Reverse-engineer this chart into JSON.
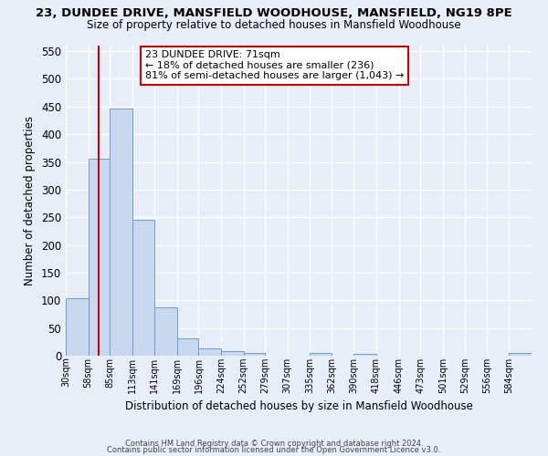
{
  "title": "23, DUNDEE DRIVE, MANSFIELD WOODHOUSE, MANSFIELD, NG19 8PE",
  "subtitle": "Size of property relative to detached houses in Mansfield Woodhouse",
  "xlabel": "Distribution of detached houses by size in Mansfield Woodhouse",
  "ylabel": "Number of detached properties",
  "bin_labels": [
    "30sqm",
    "58sqm",
    "85sqm",
    "113sqm",
    "141sqm",
    "169sqm",
    "196sqm",
    "224sqm",
    "252sqm",
    "279sqm",
    "307sqm",
    "335sqm",
    "362sqm",
    "390sqm",
    "418sqm",
    "446sqm",
    "473sqm",
    "501sqm",
    "529sqm",
    "556sqm",
    "584sqm"
  ],
  "bin_edges": [
    30,
    58,
    85,
    113,
    141,
    169,
    196,
    224,
    252,
    279,
    307,
    335,
    362,
    390,
    418,
    446,
    473,
    501,
    529,
    556,
    584
  ],
  "bar_heights": [
    103,
    355,
    447,
    246,
    88,
    31,
    14,
    8,
    5,
    0,
    0,
    5,
    0,
    3,
    0,
    0,
    0,
    0,
    0,
    0,
    5
  ],
  "bar_color": "#c8d8ee",
  "bar_edge_color": "#6a9fd0",
  "vline_x": 71,
  "vline_color": "#cc0000",
  "ylim": [
    0,
    560
  ],
  "yticks": [
    0,
    50,
    100,
    150,
    200,
    250,
    300,
    350,
    400,
    450,
    500,
    550
  ],
  "annotation_title": "23 DUNDEE DRIVE: 71sqm",
  "annotation_line1": "← 18% of detached houses are smaller (236)",
  "annotation_line2": "81% of semi-detached houses are larger (1,043) →",
  "annotation_box_color": "#ffffff",
  "annotation_box_edge": "#cc0000",
  "background_color": "#e8eef8",
  "plot_bg_color": "#e8eef8",
  "grid_color": "#ffffff",
  "footer1": "Contains HM Land Registry data © Crown copyright and database right 2024.",
  "footer2": "Contains public sector information licensed under the Open Government Licence v3.0."
}
